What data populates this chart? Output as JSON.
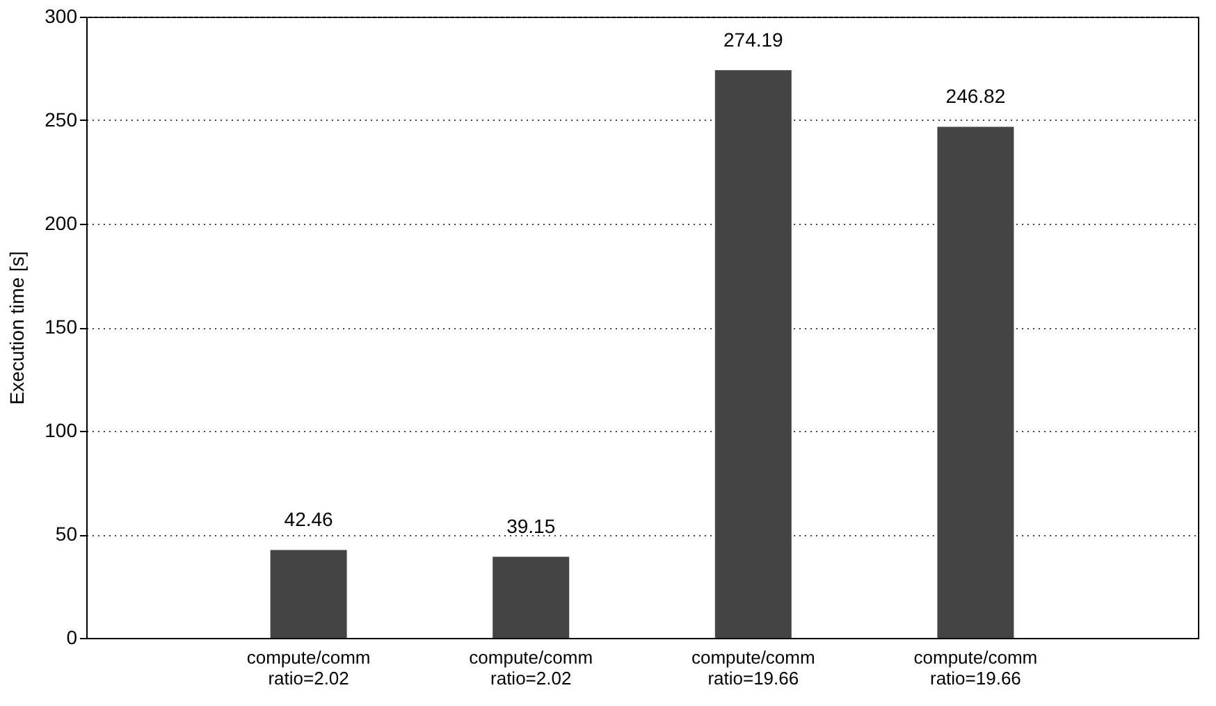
{
  "chart_data": {
    "type": "bar",
    "ylabel": "Execution time [s]",
    "categories": [
      "compute/comm ratio=2.02",
      "compute/comm ratio=2.02",
      "compute/comm ratio=19.66",
      "compute/comm ratio=19.66"
    ],
    "values": [
      42.46,
      39.15,
      274.19,
      246.82
    ],
    "color": "#444444",
    "ylim": [
      0,
      300
    ],
    "yticks": [
      0,
      50,
      100,
      150,
      200,
      250,
      300
    ],
    "grid": "y",
    "data_labels": true
  }
}
